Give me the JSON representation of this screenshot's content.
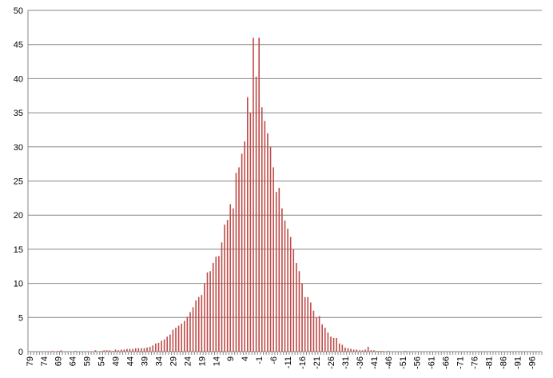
{
  "chart_data": {
    "type": "bar",
    "color": "#be4b48",
    "grid": true,
    "ylim": [
      0,
      50
    ],
    "yticks": [
      0,
      5,
      10,
      15,
      20,
      25,
      30,
      35,
      40,
      45,
      50
    ],
    "categories": [
      "79",
      null,
      null,
      null,
      null,
      "74",
      null,
      null,
      null,
      null,
      "69",
      null,
      null,
      null,
      null,
      "64",
      null,
      null,
      null,
      null,
      "59",
      null,
      null,
      null,
      null,
      "54",
      null,
      null,
      null,
      null,
      "49",
      null,
      null,
      null,
      null,
      "44",
      null,
      null,
      null,
      null,
      "39",
      null,
      null,
      null,
      null,
      "34",
      null,
      null,
      null,
      null,
      "29",
      null,
      null,
      null,
      null,
      "24",
      null,
      null,
      null,
      null,
      "19",
      null,
      null,
      null,
      null,
      "14",
      null,
      null,
      null,
      null,
      "9",
      null,
      null,
      null,
      null,
      "4",
      null,
      null,
      null,
      null,
      "-1",
      null,
      null,
      null,
      null,
      "-6",
      null,
      null,
      null,
      null,
      "-11",
      null,
      null,
      null,
      null,
      "-16",
      null,
      null,
      null,
      null,
      "-21",
      null,
      null,
      null,
      null,
      "-26",
      null,
      null,
      null,
      null,
      "-31",
      null,
      null,
      null,
      null,
      "-36",
      null,
      null,
      null,
      null,
      "-41",
      null,
      null,
      null,
      null,
      "-46",
      null,
      null,
      null,
      null,
      "-51",
      null,
      null,
      null,
      null,
      "-56",
      null,
      null,
      null,
      null,
      "-61",
      null,
      null,
      null,
      null,
      "-66",
      null,
      null,
      null,
      null,
      "-71",
      null,
      null,
      null,
      null,
      "-76",
      null,
      null,
      null,
      null,
      "-81",
      null,
      null,
      null,
      null,
      "-86",
      null,
      null,
      null,
      null,
      "-91",
      null,
      null,
      null,
      null,
      "-96",
      null,
      null,
      null
    ],
    "values": [
      0,
      0,
      0,
      0,
      0,
      0,
      0,
      0,
      0.1,
      0,
      0.1,
      0.2,
      0,
      0,
      0,
      0,
      0.1,
      0,
      0,
      0,
      0,
      0,
      0,
      0.2,
      0,
      0.1,
      0.2,
      0.2,
      0.2,
      0.1,
      0.3,
      0.2,
      0.3,
      0.3,
      0.4,
      0.4,
      0.4,
      0.5,
      0.5,
      0.5,
      0.5,
      0.6,
      0.7,
      0.9,
      1.2,
      1.3,
      1.6,
      1.8,
      2.2,
      2.5,
      3.2,
      3.5,
      3.8,
      4.1,
      4.5,
      5.1,
      5.8,
      6.5,
      7.5,
      8,
      8.3,
      10,
      11.6,
      11.8,
      13,
      13.9,
      14,
      16,
      18.6,
      19.3,
      21.6,
      21,
      26.2,
      27,
      29,
      30.8,
      37.3,
      35,
      46,
      40.3,
      46,
      35.8,
      33.8,
      32,
      30,
      27,
      23.4,
      24,
      21,
      19.2,
      18,
      16.8,
      15,
      13,
      11.8,
      10,
      8,
      8,
      7.2,
      6,
      5,
      5.2,
      4,
      3.5,
      2.8,
      2.2,
      2,
      2,
      1.2,
      1,
      0.6,
      0.5,
      0.4,
      0.3,
      0.3,
      0.2,
      0.2,
      0.3,
      0.7,
      0.2,
      0.2,
      0.1,
      0.1,
      0.1,
      0,
      0.1,
      0,
      0,
      0,
      0,
      0,
      0.1,
      0,
      0,
      0,
      0,
      0,
      0,
      0,
      0,
      0,
      0,
      0,
      0,
      0,
      0,
      0,
      0,
      0,
      0,
      0,
      0,
      0,
      0,
      0,
      0,
      0,
      0,
      0,
      0,
      0,
      0,
      0,
      0,
      0,
      0,
      0,
      0,
      0,
      0,
      0,
      0,
      0,
      0,
      0,
      0,
      0,
      0,
      0
    ]
  }
}
